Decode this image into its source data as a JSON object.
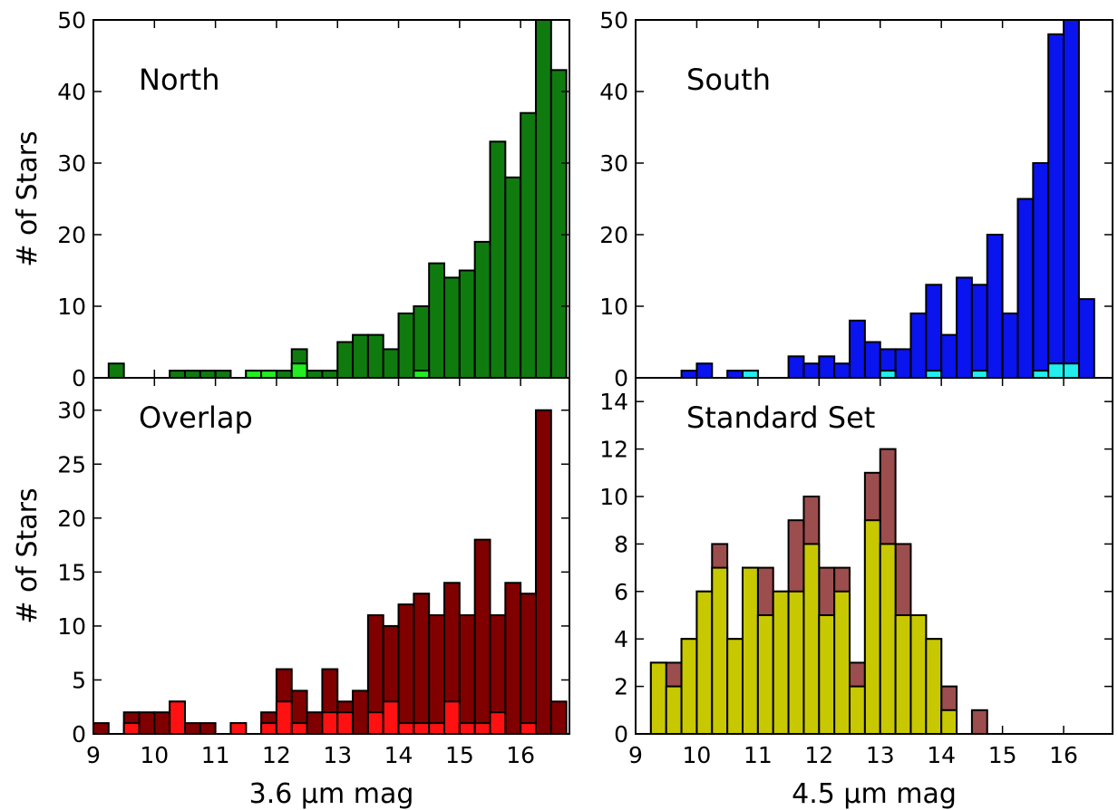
{
  "chart_data": [
    {
      "type": "bar",
      "stacked_overlay": true,
      "label": "North",
      "ylabel": "# of Stars",
      "xlabel": "",
      "xlim": [
        9,
        16.8
      ],
      "ylim": [
        0,
        50
      ],
      "xticks": [
        9,
        10,
        11,
        12,
        13,
        14,
        15,
        16
      ],
      "yticks": [
        0,
        10,
        20,
        30,
        40,
        50
      ],
      "bin_width": 0.25,
      "colors": {
        "main": "#0f7b0f",
        "sub": "#22ee22"
      },
      "series": [
        {
          "role": "main",
          "bins": [
            [
              9.25,
              2
            ],
            [
              10.25,
              1
            ],
            [
              10.5,
              1
            ],
            [
              10.75,
              1
            ],
            [
              11,
              1
            ],
            [
              11.5,
              1
            ],
            [
              11.75,
              1
            ],
            [
              12,
              1
            ],
            [
              12.25,
              4
            ],
            [
              12.5,
              1
            ],
            [
              12.75,
              1
            ],
            [
              13,
              5
            ],
            [
              13.25,
              6
            ],
            [
              13.5,
              6
            ],
            [
              13.75,
              4
            ],
            [
              14,
              9
            ],
            [
              14.25,
              10
            ],
            [
              14.5,
              16
            ],
            [
              14.75,
              14
            ],
            [
              15,
              15
            ],
            [
              15.25,
              19
            ],
            [
              15.5,
              33
            ],
            [
              15.75,
              28
            ],
            [
              16,
              37
            ],
            [
              16.25,
              50
            ],
            [
              16.5,
              43
            ]
          ]
        },
        {
          "role": "sub",
          "bins": [
            [
              11.5,
              1
            ],
            [
              11.75,
              1
            ],
            [
              12.25,
              2
            ],
            [
              14.25,
              1
            ]
          ]
        }
      ]
    },
    {
      "type": "bar",
      "stacked_overlay": true,
      "label": "South",
      "ylabel": "",
      "xlabel": "",
      "xlim": [
        9,
        16.8
      ],
      "ylim": [
        0,
        50
      ],
      "xticks": [
        9,
        10,
        11,
        12,
        13,
        14,
        15,
        16
      ],
      "yticks": [
        0,
        10,
        20,
        30,
        40,
        50
      ],
      "bin_width": 0.25,
      "colors": {
        "main": "#0a14ee",
        "sub": "#22eeee"
      },
      "series": [
        {
          "role": "main",
          "bins": [
            [
              9.75,
              1
            ],
            [
              10,
              2
            ],
            [
              10.5,
              1
            ],
            [
              10.75,
              1
            ],
            [
              11.5,
              3
            ],
            [
              11.75,
              2
            ],
            [
              12,
              3
            ],
            [
              12.25,
              2
            ],
            [
              12.5,
              8
            ],
            [
              12.75,
              5
            ],
            [
              13,
              4
            ],
            [
              13.25,
              4
            ],
            [
              13.5,
              9
            ],
            [
              13.75,
              13
            ],
            [
              14,
              6
            ],
            [
              14.25,
              14
            ],
            [
              14.5,
              13
            ],
            [
              14.75,
              20
            ],
            [
              15,
              9
            ],
            [
              15.25,
              25
            ],
            [
              15.5,
              30
            ],
            [
              15.75,
              48
            ],
            [
              16,
              50
            ],
            [
              16.25,
              11
            ]
          ]
        },
        {
          "role": "sub",
          "bins": [
            [
              10.75,
              1
            ],
            [
              13,
              1
            ],
            [
              13.75,
              1
            ],
            [
              14.5,
              1
            ],
            [
              15.5,
              1
            ],
            [
              15.75,
              2
            ],
            [
              16,
              2
            ]
          ]
        }
      ]
    },
    {
      "type": "bar",
      "stacked_overlay": true,
      "label": "Overlap",
      "ylabel": "# of Stars",
      "xlabel": "3.6 μm mag",
      "xlim": [
        9,
        16.8
      ],
      "ylim": [
        0,
        33
      ],
      "xticks": [
        9,
        10,
        11,
        12,
        13,
        14,
        15,
        16
      ],
      "yticks": [
        0,
        5,
        10,
        15,
        20,
        25,
        30
      ],
      "bin_width": 0.25,
      "colors": {
        "main": "#800000",
        "sub": "#ff1111"
      },
      "series": [
        {
          "role": "main",
          "bins": [
            [
              9,
              1
            ],
            [
              9.5,
              2
            ],
            [
              9.75,
              2
            ],
            [
              10,
              2
            ],
            [
              10.25,
              3
            ],
            [
              10.5,
              1
            ],
            [
              10.75,
              1
            ],
            [
              11.25,
              1
            ],
            [
              11.75,
              2
            ],
            [
              12,
              6
            ],
            [
              12.25,
              4
            ],
            [
              12.5,
              2
            ],
            [
              12.75,
              6
            ],
            [
              13,
              3
            ],
            [
              13.25,
              4
            ],
            [
              13.5,
              11
            ],
            [
              13.75,
              10
            ],
            [
              14,
              12
            ],
            [
              14.25,
              13
            ],
            [
              14.5,
              11
            ],
            [
              14.75,
              14
            ],
            [
              15,
              11
            ],
            [
              15.25,
              18
            ],
            [
              15.5,
              11
            ],
            [
              15.75,
              14
            ],
            [
              16,
              13
            ],
            [
              16.25,
              30
            ],
            [
              16.5,
              3
            ]
          ]
        },
        {
          "role": "sub",
          "bins": [
            [
              9.5,
              1
            ],
            [
              10.25,
              3
            ],
            [
              11.25,
              1
            ],
            [
              11.75,
              1
            ],
            [
              12,
              3
            ],
            [
              12.25,
              1
            ],
            [
              12.75,
              2
            ],
            [
              13,
              2
            ],
            [
              13.5,
              2
            ],
            [
              13.75,
              3
            ],
            [
              14,
              1
            ],
            [
              14.25,
              1
            ],
            [
              14.5,
              1
            ],
            [
              14.75,
              3
            ],
            [
              15,
              1
            ],
            [
              15.25,
              1
            ],
            [
              15.5,
              2
            ],
            [
              16,
              1
            ]
          ]
        }
      ]
    },
    {
      "type": "bar",
      "stacked_overlay": true,
      "label": "Standard Set",
      "ylabel": "",
      "xlabel": "4.5 μm mag",
      "xlim": [
        9,
        16.8
      ],
      "ylim": [
        0,
        15
      ],
      "xticks": [
        9,
        10,
        11,
        12,
        13,
        14,
        15,
        16
      ],
      "yticks": [
        0,
        2,
        4,
        6,
        8,
        10,
        12,
        14
      ],
      "bin_width": 0.25,
      "colors": {
        "main": "#9c4d4d",
        "sub": "#c8c800"
      },
      "series": [
        {
          "role": "main",
          "bins": [
            [
              9.25,
              3
            ],
            [
              9.5,
              3
            ],
            [
              9.75,
              4
            ],
            [
              10,
              6
            ],
            [
              10.25,
              8
            ],
            [
              10.5,
              4
            ],
            [
              10.75,
              7
            ],
            [
              11,
              7
            ],
            [
              11.25,
              6
            ],
            [
              11.5,
              9
            ],
            [
              11.75,
              10
            ],
            [
              12,
              7
            ],
            [
              12.25,
              7
            ],
            [
              12.5,
              3
            ],
            [
              12.75,
              11
            ],
            [
              13,
              12
            ],
            [
              13.25,
              8
            ],
            [
              13.5,
              5
            ],
            [
              13.75,
              4
            ],
            [
              14,
              2
            ],
            [
              14.5,
              1
            ]
          ]
        },
        {
          "role": "sub",
          "bins": [
            [
              9.25,
              3
            ],
            [
              9.5,
              2
            ],
            [
              9.75,
              4
            ],
            [
              10,
              6
            ],
            [
              10.25,
              7
            ],
            [
              10.5,
              4
            ],
            [
              10.75,
              7
            ],
            [
              11,
              5
            ],
            [
              11.25,
              6
            ],
            [
              11.5,
              6
            ],
            [
              11.75,
              8
            ],
            [
              12,
              5
            ],
            [
              12.25,
              6
            ],
            [
              12.5,
              2
            ],
            [
              12.75,
              9
            ],
            [
              13,
              8
            ],
            [
              13.25,
              5
            ],
            [
              13.5,
              5
            ],
            [
              13.75,
              4
            ],
            [
              14,
              1
            ]
          ]
        }
      ]
    }
  ]
}
